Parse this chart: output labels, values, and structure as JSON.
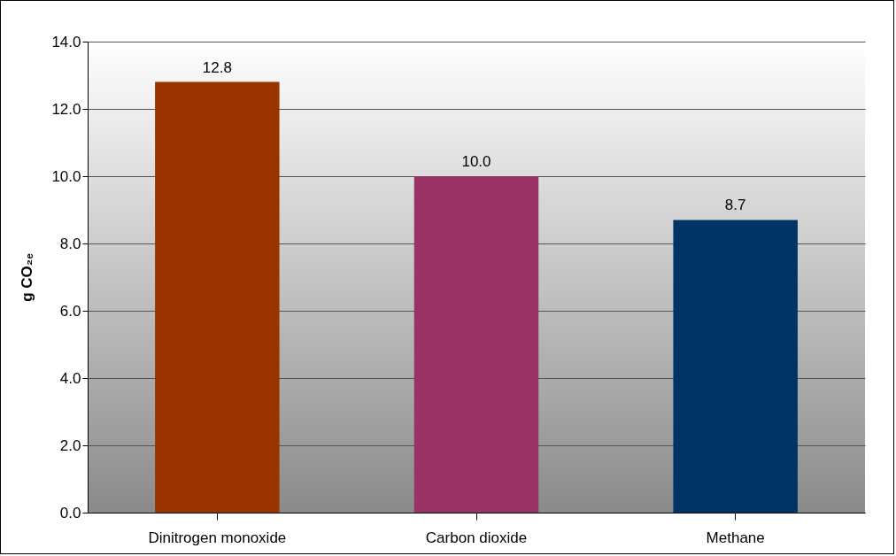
{
  "chart_data": {
    "type": "bar",
    "ylabel": "g CO₂ₑ",
    "categories": [
      "Dinitrogen monoxide",
      "Carbon dioxide",
      "Methane"
    ],
    "values": [
      12.8,
      10.0,
      8.7
    ],
    "colors": [
      "#993300",
      "#993366",
      "#003366"
    ],
    "value_labels": [
      "12.8",
      "10.0",
      "8.7"
    ],
    "ylim": [
      0,
      14
    ],
    "yticks": [
      {
        "value": 0,
        "label": "0.0"
      },
      {
        "value": 2,
        "label": "2.0"
      },
      {
        "value": 4,
        "label": "4.0"
      },
      {
        "value": 6,
        "label": "6.0"
      },
      {
        "value": 8,
        "label": "8.0"
      },
      {
        "value": 10,
        "label": "10.0"
      },
      {
        "value": 12,
        "label": "12.0"
      },
      {
        "value": 14,
        "label": "14.0"
      }
    ],
    "grid": "y"
  }
}
